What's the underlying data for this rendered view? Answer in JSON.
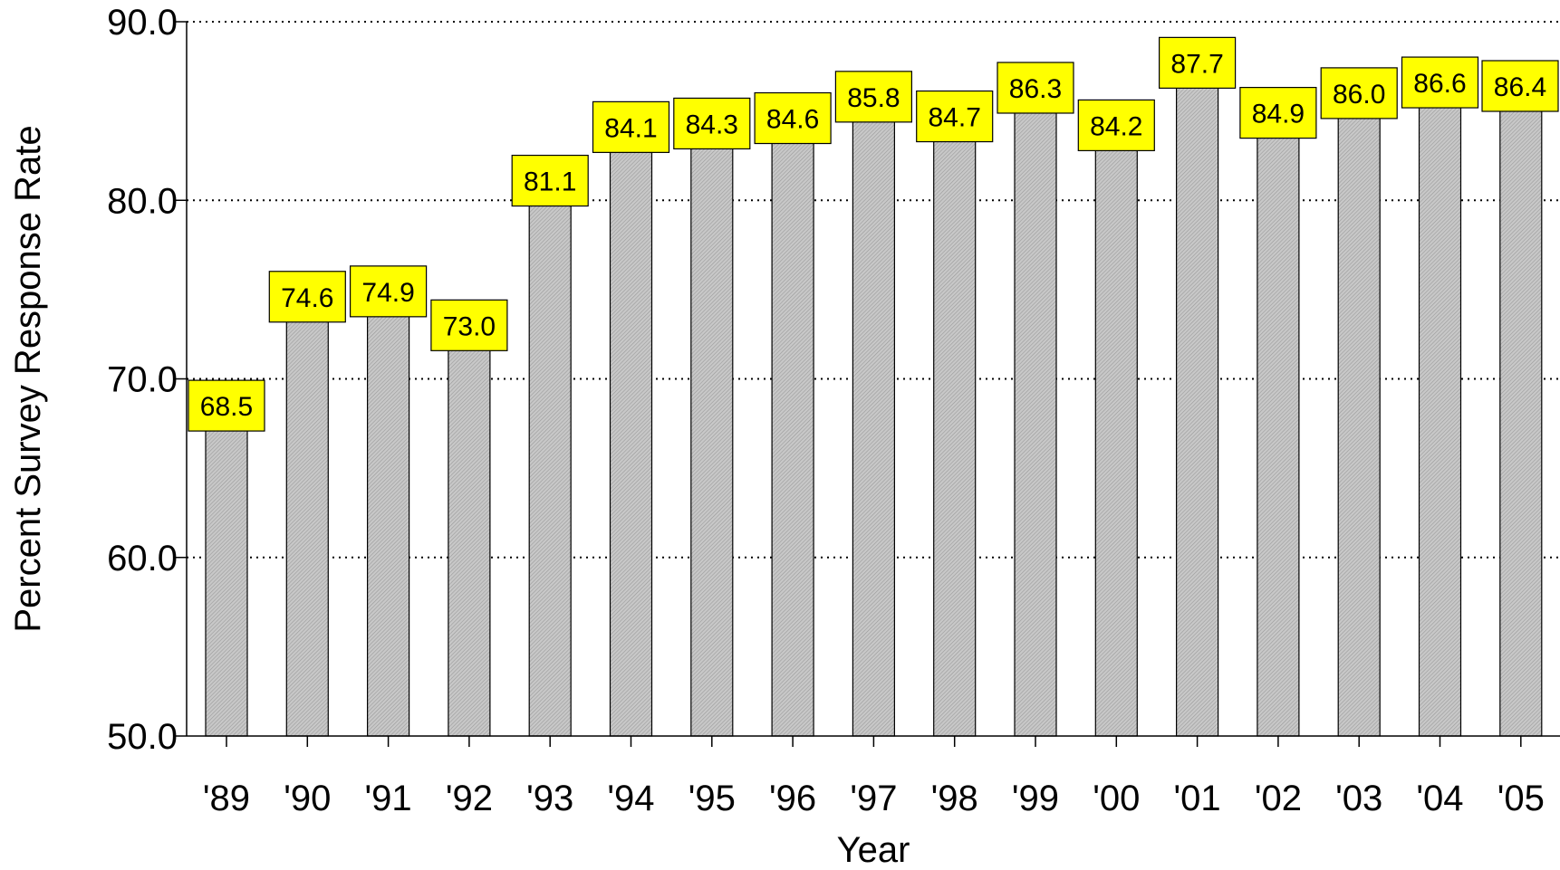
{
  "chart_data": {
    "type": "bar",
    "title": "",
    "xlabel": "Year",
    "ylabel": "Percent Survey Response Rate",
    "categories": [
      "'89",
      "'90",
      "'91",
      "'92",
      "'93",
      "'94",
      "'95",
      "'96",
      "'97",
      "'98",
      "'99",
      "'00",
      "'01",
      "'02",
      "'03",
      "'04",
      "'05"
    ],
    "values": [
      68.5,
      74.6,
      74.9,
      73.0,
      81.1,
      84.1,
      84.3,
      84.6,
      85.8,
      84.7,
      86.3,
      84.2,
      87.7,
      84.9,
      86.0,
      86.6,
      86.4
    ],
    "data_labels": [
      "68.5",
      "74.6",
      "74.9",
      "73.0",
      "81.1",
      "84.1",
      "84.3",
      "84.6",
      "85.8",
      "84.7",
      "86.3",
      "84.2",
      "87.7",
      "84.9",
      "86.0",
      "86.6",
      "86.4"
    ],
    "ylim": [
      50,
      90
    ],
    "yticks": [
      50,
      60,
      70,
      80,
      90
    ],
    "ytick_labels": [
      "50.0",
      "60.0",
      "70.0",
      "80.0",
      "90.0"
    ],
    "grid": "horizontal dotted",
    "legend": "none",
    "colors": {
      "bar_fill": "#c8c8c8",
      "bar_hatch": "#9a9a9a",
      "label_box_fill": "#ffff00",
      "label_box_stroke": "#000000",
      "grid": "#000000"
    }
  }
}
